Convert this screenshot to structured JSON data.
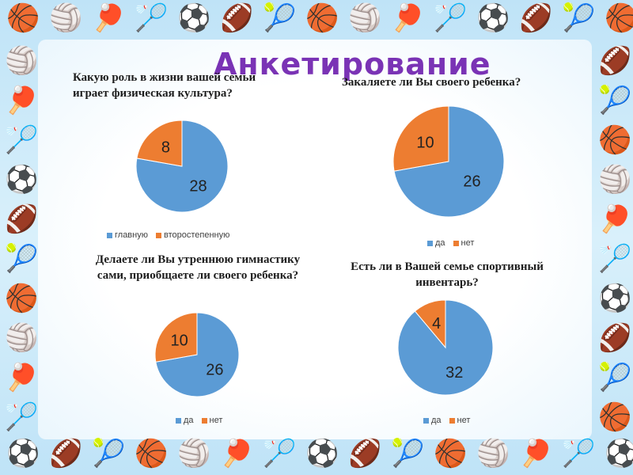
{
  "title": "Анкетирование",
  "colors": {
    "blue": "#5b9bd5",
    "orange": "#ed7d31"
  },
  "chart_data": [
    {
      "type": "pie",
      "title": "Какую роль в жизни вашей семьи играет физическая культура?",
      "labels": [
        "главную",
        "второстепенную"
      ],
      "values": [
        28,
        8
      ],
      "legend": "bottom"
    },
    {
      "type": "pie",
      "title": "Закаляете ли Вы своего ребенка?",
      "labels": [
        "да",
        "нет"
      ],
      "values": [
        26,
        10
      ],
      "legend": "bottom"
    },
    {
      "type": "pie",
      "title": "Делаете ли Вы утреннюю гимнастику сами, приобщаете ли своего ребенка?",
      "labels": [
        "да",
        "нет"
      ],
      "values": [
        26,
        10
      ],
      "legend": "bottom"
    },
    {
      "type": "pie",
      "title": "Есть ли в Вашей семье спортивный инвентарь?",
      "labels": [
        "да",
        "нет"
      ],
      "values": [
        32,
        4
      ],
      "legend": "bottom"
    }
  ]
}
